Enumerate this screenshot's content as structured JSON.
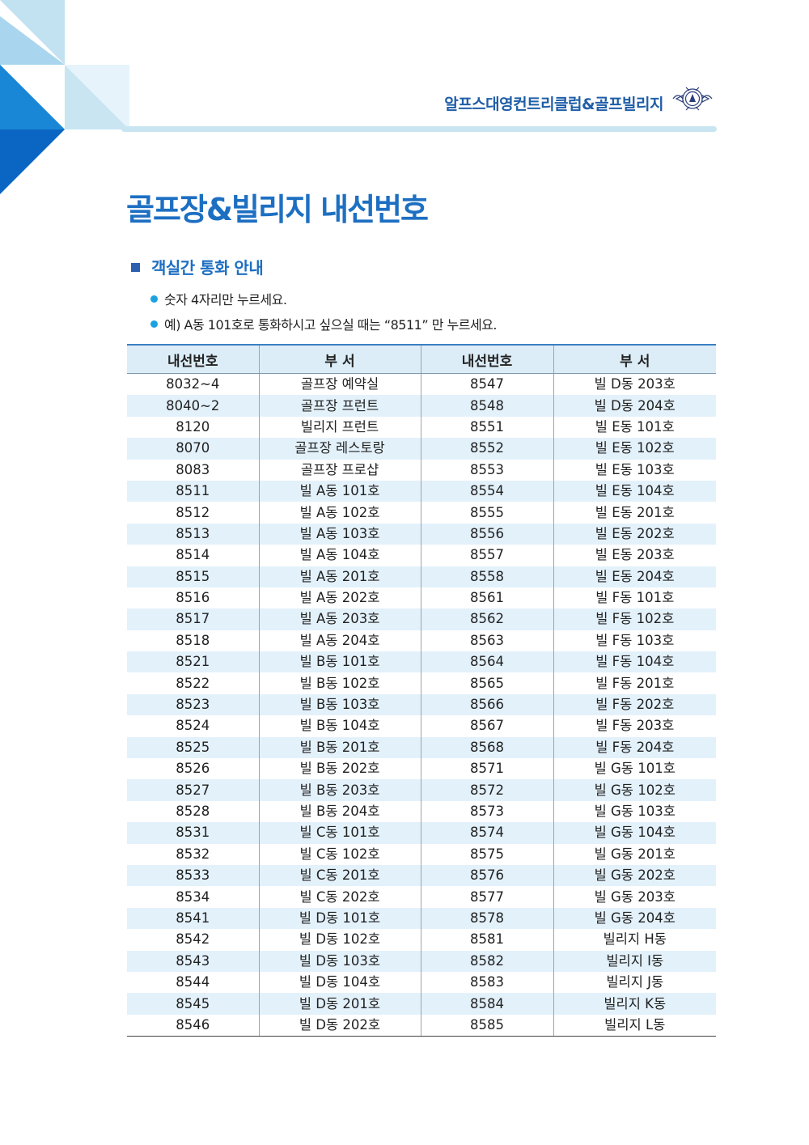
{
  "header": {
    "brand_name": "알프스대영컨트리클럽&골프빌리지",
    "emblem_icon": "club-emblem-icon"
  },
  "page": {
    "title": "골프장&빌리지 내선번호"
  },
  "section": {
    "heading": "객실간 통화 안내",
    "guide_1": "숫자 4자리만 누르세요.",
    "guide_2": "예) A동 101호로 통화하시고 싶으실 때는 “8511” 만 누르세요."
  },
  "colors": {
    "accent_blue": "#1d6fc2",
    "light_blue": "#c9e5f2",
    "row_stripe": "#e3f1fb",
    "bullet": "#1aa2e0"
  },
  "table": {
    "headers": [
      "내선번호",
      "부 서",
      "내선번호",
      "부 서"
    ],
    "rows": [
      [
        "8032~4",
        "골프장 예약실",
        "8547",
        "빌 D동 203호"
      ],
      [
        "8040~2",
        "골프장 프런트",
        "8548",
        "빌 D동 204호"
      ],
      [
        "8120",
        "빌리지 프런트",
        "8551",
        "빌 E동 101호"
      ],
      [
        "8070",
        "골프장 레스토랑",
        "8552",
        "빌 E동 102호"
      ],
      [
        "8083",
        "골프장 프로샵",
        "8553",
        "빌 E동 103호"
      ],
      [
        "8511",
        "빌 A동 101호",
        "8554",
        "빌 E동 104호"
      ],
      [
        "8512",
        "빌 A동 102호",
        "8555",
        "빌 E동 201호"
      ],
      [
        "8513",
        "빌 A동 103호",
        "8556",
        "빌 E동 202호"
      ],
      [
        "8514",
        "빌 A동 104호",
        "8557",
        "빌 E동 203호"
      ],
      [
        "8515",
        "빌 A동 201호",
        "8558",
        "빌 E동 204호"
      ],
      [
        "8516",
        "빌 A동 202호",
        "8561",
        "빌 F동 101호"
      ],
      [
        "8517",
        "빌 A동 203호",
        "8562",
        "빌 F동 102호"
      ],
      [
        "8518",
        "빌 A동 204호",
        "8563",
        "빌 F동 103호"
      ],
      [
        "8521",
        "빌 B동 101호",
        "8564",
        "빌 F동 104호"
      ],
      [
        "8522",
        "빌 B동 102호",
        "8565",
        "빌 F동 201호"
      ],
      [
        "8523",
        "빌 B동 103호",
        "8566",
        "빌 F동 202호"
      ],
      [
        "8524",
        "빌 B동 104호",
        "8567",
        "빌 F동 203호"
      ],
      [
        "8525",
        "빌 B동 201호",
        "8568",
        "빌 F동 204호"
      ],
      [
        "8526",
        "빌 B동 202호",
        "8571",
        "빌 G동 101호"
      ],
      [
        "8527",
        "빌 B동 203호",
        "8572",
        "빌 G동 102호"
      ],
      [
        "8528",
        "빌 B동 204호",
        "8573",
        "빌 G동 103호"
      ],
      [
        "8531",
        "빌 C동 101호",
        "8574",
        "빌 G동 104호"
      ],
      [
        "8532",
        "빌 C동 102호",
        "8575",
        "빌 G동 201호"
      ],
      [
        "8533",
        "빌 C동 201호",
        "8576",
        "빌 G동 202호"
      ],
      [
        "8534",
        "빌 C동 202호",
        "8577",
        "빌 G동 203호"
      ],
      [
        "8541",
        "빌 D동 101호",
        "8578",
        "빌 G동 204호"
      ],
      [
        "8542",
        "빌 D동 102호",
        "8581",
        "빌리지 H동"
      ],
      [
        "8543",
        "빌 D동 103호",
        "8582",
        "빌리지 I동"
      ],
      [
        "8544",
        "빌 D동 104호",
        "8583",
        "빌리지  J동"
      ],
      [
        "8545",
        "빌 D동 201호",
        "8584",
        "빌리지  K동"
      ],
      [
        "8546",
        "빌 D동 202호",
        "8585",
        "빌리지 L동"
      ]
    ]
  }
}
